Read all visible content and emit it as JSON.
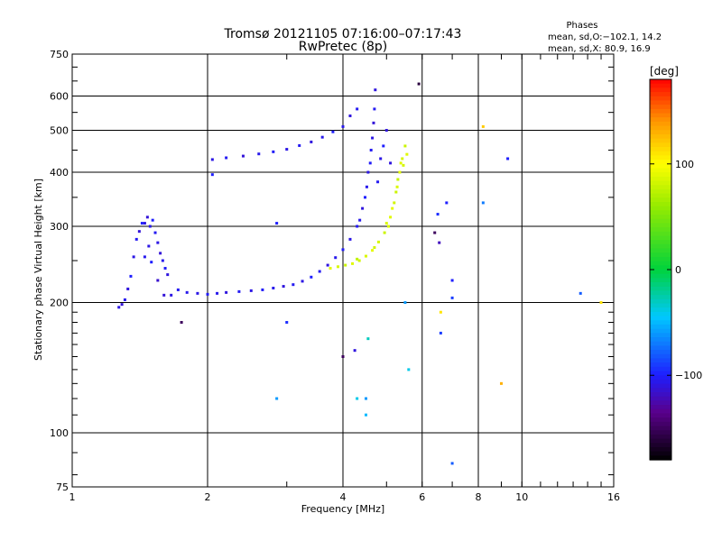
{
  "header": {
    "title": "Tromsø 20121105 07:16:00–07:17:43",
    "subtitle": "RwPretec (8p)"
  },
  "phases_box": {
    "title": "Phases",
    "line1": "mean, sd,O:−102.1, 14.2",
    "line2": "mean, sd,X:  80.9, 16.9"
  },
  "colorbar": {
    "label": "[deg]",
    "range": [
      -180,
      180
    ],
    "ticks": [
      {
        "value": 100,
        "label": "100"
      },
      {
        "value": 0,
        "label": "0"
      },
      {
        "value": -100,
        "label": "−100"
      }
    ]
  },
  "chart_data": {
    "type": "scatter",
    "title": "Tromsø 20121105 07:16:00–07:17:43",
    "subtitle": "RwPretec (8p)",
    "xlabel": "Frequency [MHz]",
    "ylabel": "Stationary phase Virtual Height [km]",
    "xscale": "log",
    "yscale": "log",
    "xlim": [
      1,
      16
    ],
    "ylim": [
      75,
      750
    ],
    "xticks": [
      {
        "value": 1,
        "label": "1"
      },
      {
        "value": 2,
        "label": "2"
      },
      {
        "value": 4,
        "label": "4"
      },
      {
        "value": 6,
        "label": "6"
      },
      {
        "value": 8,
        "label": "8"
      },
      {
        "value": 10,
        "label": "10"
      },
      {
        "value": 16,
        "label": "16"
      }
    ],
    "yticks": [
      {
        "value": 75,
        "label": "75"
      },
      {
        "value": 100,
        "label": "100"
      },
      {
        "value": 200,
        "label": "200"
      },
      {
        "value": 300,
        "label": "300"
      },
      {
        "value": 400,
        "label": "400"
      },
      {
        "value": 500,
        "label": "500"
      },
      {
        "value": 600,
        "label": "600"
      },
      {
        "value": 750,
        "label": "750"
      }
    ],
    "grid_x": [
      2,
      4,
      6,
      8,
      10
    ],
    "grid_y": [
      100,
      200,
      300,
      400,
      500,
      600
    ],
    "grid": true,
    "color_scale": "phase [deg], −180 to 180",
    "series": [
      {
        "name": "O",
        "points": [
          [
            1.27,
            195,
            -108
          ],
          [
            1.29,
            198,
            -112
          ],
          [
            1.31,
            203,
            -105
          ],
          [
            1.33,
            215,
            -110
          ],
          [
            1.35,
            230,
            -100
          ],
          [
            1.37,
            255,
            -108
          ],
          [
            1.39,
            280,
            -104
          ],
          [
            1.41,
            292,
            -112
          ],
          [
            1.43,
            305,
            -100
          ],
          [
            1.45,
            305,
            -108
          ],
          [
            1.47,
            315,
            -112
          ],
          [
            1.49,
            300,
            -106
          ],
          [
            1.51,
            310,
            -100
          ],
          [
            1.53,
            290,
            -104
          ],
          [
            1.55,
            275,
            -108
          ],
          [
            1.57,
            260,
            -112
          ],
          [
            1.59,
            250,
            -106
          ],
          [
            1.61,
            240,
            -102
          ],
          [
            1.63,
            232,
            -110
          ],
          [
            1.45,
            255,
            -105
          ],
          [
            1.48,
            270,
            -108
          ],
          [
            1.5,
            248,
            -100
          ],
          [
            1.55,
            225,
            -115
          ],
          [
            1.6,
            208,
            -112
          ],
          [
            1.66,
            208,
            -108
          ],
          [
            1.72,
            214,
            -104
          ],
          [
            1.8,
            211,
            -106
          ],
          [
            1.9,
            210,
            -108
          ],
          [
            2.0,
            209,
            -102
          ],
          [
            2.1,
            210,
            -106
          ],
          [
            2.2,
            211,
            -110
          ],
          [
            2.35,
            212,
            -104
          ],
          [
            2.5,
            213,
            -108
          ],
          [
            2.65,
            214,
            -102
          ],
          [
            2.8,
            216,
            -106
          ],
          [
            2.95,
            218,
            -110
          ],
          [
            3.1,
            220,
            -104
          ],
          [
            3.25,
            224,
            -108
          ],
          [
            3.4,
            229,
            -100
          ],
          [
            3.55,
            236,
            -104
          ],
          [
            3.7,
            244,
            -110
          ],
          [
            3.85,
            254,
            -106
          ],
          [
            4.0,
            265,
            -102
          ],
          [
            4.15,
            280,
            -108
          ],
          [
            4.3,
            300,
            -104
          ],
          [
            4.42,
            330,
            -110
          ],
          [
            4.52,
            370,
            -106
          ],
          [
            4.6,
            420,
            -102
          ],
          [
            4.65,
            480,
            -108
          ],
          [
            4.7,
            560,
            -104
          ],
          [
            4.72,
            620,
            -110
          ],
          [
            4.48,
            350,
            -100
          ],
          [
            4.55,
            400,
            -108
          ],
          [
            4.62,
            450,
            -104
          ],
          [
            4.68,
            520,
            -112
          ],
          [
            4.36,
            310,
            -106
          ],
          [
            4.78,
            380,
            -104
          ],
          [
            4.85,
            430,
            -108
          ],
          [
            4.92,
            460,
            -100
          ],
          [
            5.0,
            500,
            -110
          ],
          [
            2.05,
            428,
            -108
          ],
          [
            2.2,
            432,
            -104
          ],
          [
            2.4,
            436,
            -112
          ],
          [
            2.6,
            441,
            -106
          ],
          [
            2.8,
            446,
            -102
          ],
          [
            3.0,
            452,
            -108
          ],
          [
            3.2,
            461,
            -104
          ],
          [
            3.4,
            470,
            -110
          ],
          [
            3.6,
            482,
            -106
          ],
          [
            3.8,
            496,
            -100
          ],
          [
            4.0,
            510,
            -106
          ],
          [
            4.15,
            540,
            -110
          ],
          [
            4.3,
            560,
            -104
          ]
        ]
      },
      {
        "name": "X",
        "points": [
          [
            3.75,
            240,
            90
          ],
          [
            3.9,
            242,
            85
          ],
          [
            4.05,
            244,
            80
          ],
          [
            4.2,
            246,
            88
          ],
          [
            4.35,
            250,
            82
          ],
          [
            4.5,
            256,
            86
          ],
          [
            4.65,
            264,
            90
          ],
          [
            4.8,
            276,
            84
          ],
          [
            4.95,
            290,
            80
          ],
          [
            5.1,
            315,
            88
          ],
          [
            5.2,
            340,
            82
          ],
          [
            5.28,
            370,
            86
          ],
          [
            5.35,
            400,
            90
          ],
          [
            5.42,
            430,
            84
          ],
          [
            5.5,
            460,
            80
          ],
          [
            5.05,
            300,
            86
          ],
          [
            5.15,
            330,
            90
          ],
          [
            5.3,
            385,
            78
          ],
          [
            5.45,
            415,
            84
          ],
          [
            5.55,
            440,
            88
          ],
          [
            4.3,
            252,
            76
          ],
          [
            4.7,
            268,
            82
          ],
          [
            5.0,
            305,
            86
          ],
          [
            5.25,
            360,
            80
          ],
          [
            5.38,
            420,
            88
          ]
        ]
      },
      {
        "name": "scatter",
        "points": [
          [
            2.85,
            305,
            -100
          ],
          [
            2.85,
            120,
            -60
          ],
          [
            3.0,
            180,
            -95
          ],
          [
            1.75,
            180,
            -150
          ],
          [
            4.0,
            150,
            -150
          ],
          [
            4.25,
            155,
            -110
          ],
          [
            4.3,
            120,
            -40
          ],
          [
            4.5,
            120,
            -60
          ],
          [
            4.5,
            110,
            -50
          ],
          [
            4.55,
            165,
            -30
          ],
          [
            5.1,
            420,
            -110
          ],
          [
            5.5,
            200,
            -60
          ],
          [
            5.9,
            640,
            -160
          ],
          [
            6.5,
            320,
            -95
          ],
          [
            6.55,
            275,
            -120
          ],
          [
            6.6,
            170,
            -90
          ],
          [
            6.8,
            340,
            -100
          ],
          [
            7.0,
            85,
            -80
          ],
          [
            7.0,
            225,
            -100
          ],
          [
            7.0,
            205,
            -90
          ],
          [
            8.2,
            340,
            -70
          ],
          [
            8.2,
            510,
            120
          ],
          [
            9.0,
            130,
            130
          ],
          [
            9.3,
            430,
            -100
          ],
          [
            13.5,
            210,
            -80
          ],
          [
            15.0,
            200,
            110
          ],
          [
            6.6,
            190,
            110
          ],
          [
            5.6,
            140,
            -40
          ],
          [
            6.4,
            290,
            -150
          ],
          [
            2.05,
            395,
            -100
          ]
        ]
      }
    ]
  }
}
